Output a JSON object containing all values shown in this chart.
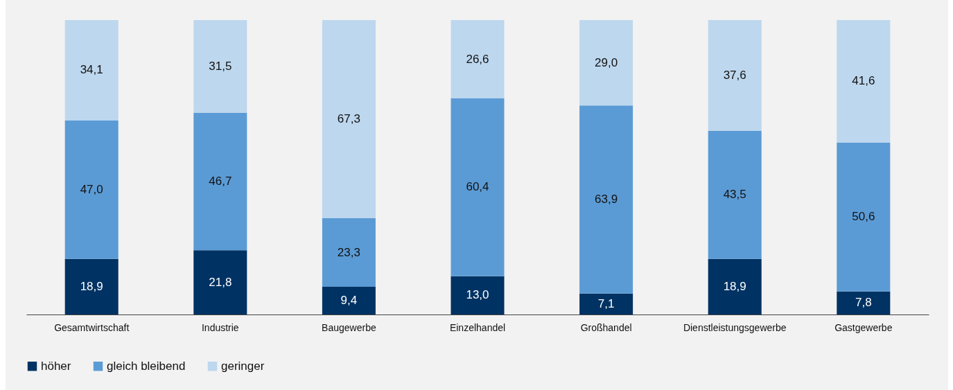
{
  "chart_data": {
    "type": "bar",
    "stacked": true,
    "legend": "bottom",
    "grid": false,
    "categories": [
      "Gesamtwirtschaft",
      "Industrie",
      "Baugewerbe",
      "Einzelhandel",
      "Großhandel",
      "Dienstleistungsgewerbe",
      "Gastgewerbe"
    ],
    "series": [
      {
        "name": "höher",
        "color": "#003263",
        "values": [
          18.9,
          21.8,
          9.4,
          13.0,
          7.1,
          18.9,
          7.8
        ],
        "value_labels": [
          "18,9",
          "21,8",
          "9,4",
          "13,0",
          "7,1",
          "18,9",
          "7,8"
        ]
      },
      {
        "name": "gleich bleibend",
        "color": "#5b9bd5",
        "values": [
          47.0,
          46.7,
          23.3,
          60.4,
          63.9,
          43.5,
          50.6
        ],
        "value_labels": [
          "47,0",
          "46,7",
          "23,3",
          "60,4",
          "63,9",
          "43,5",
          "50,6"
        ]
      },
      {
        "name": "geringer",
        "color": "#bdd7ee",
        "values": [
          34.1,
          31.5,
          67.3,
          26.6,
          29.0,
          37.6,
          41.6
        ],
        "value_labels": [
          "34,1",
          "31,5",
          "67,3",
          "26,6",
          "29,0",
          "37,6",
          "41,6"
        ]
      }
    ]
  }
}
